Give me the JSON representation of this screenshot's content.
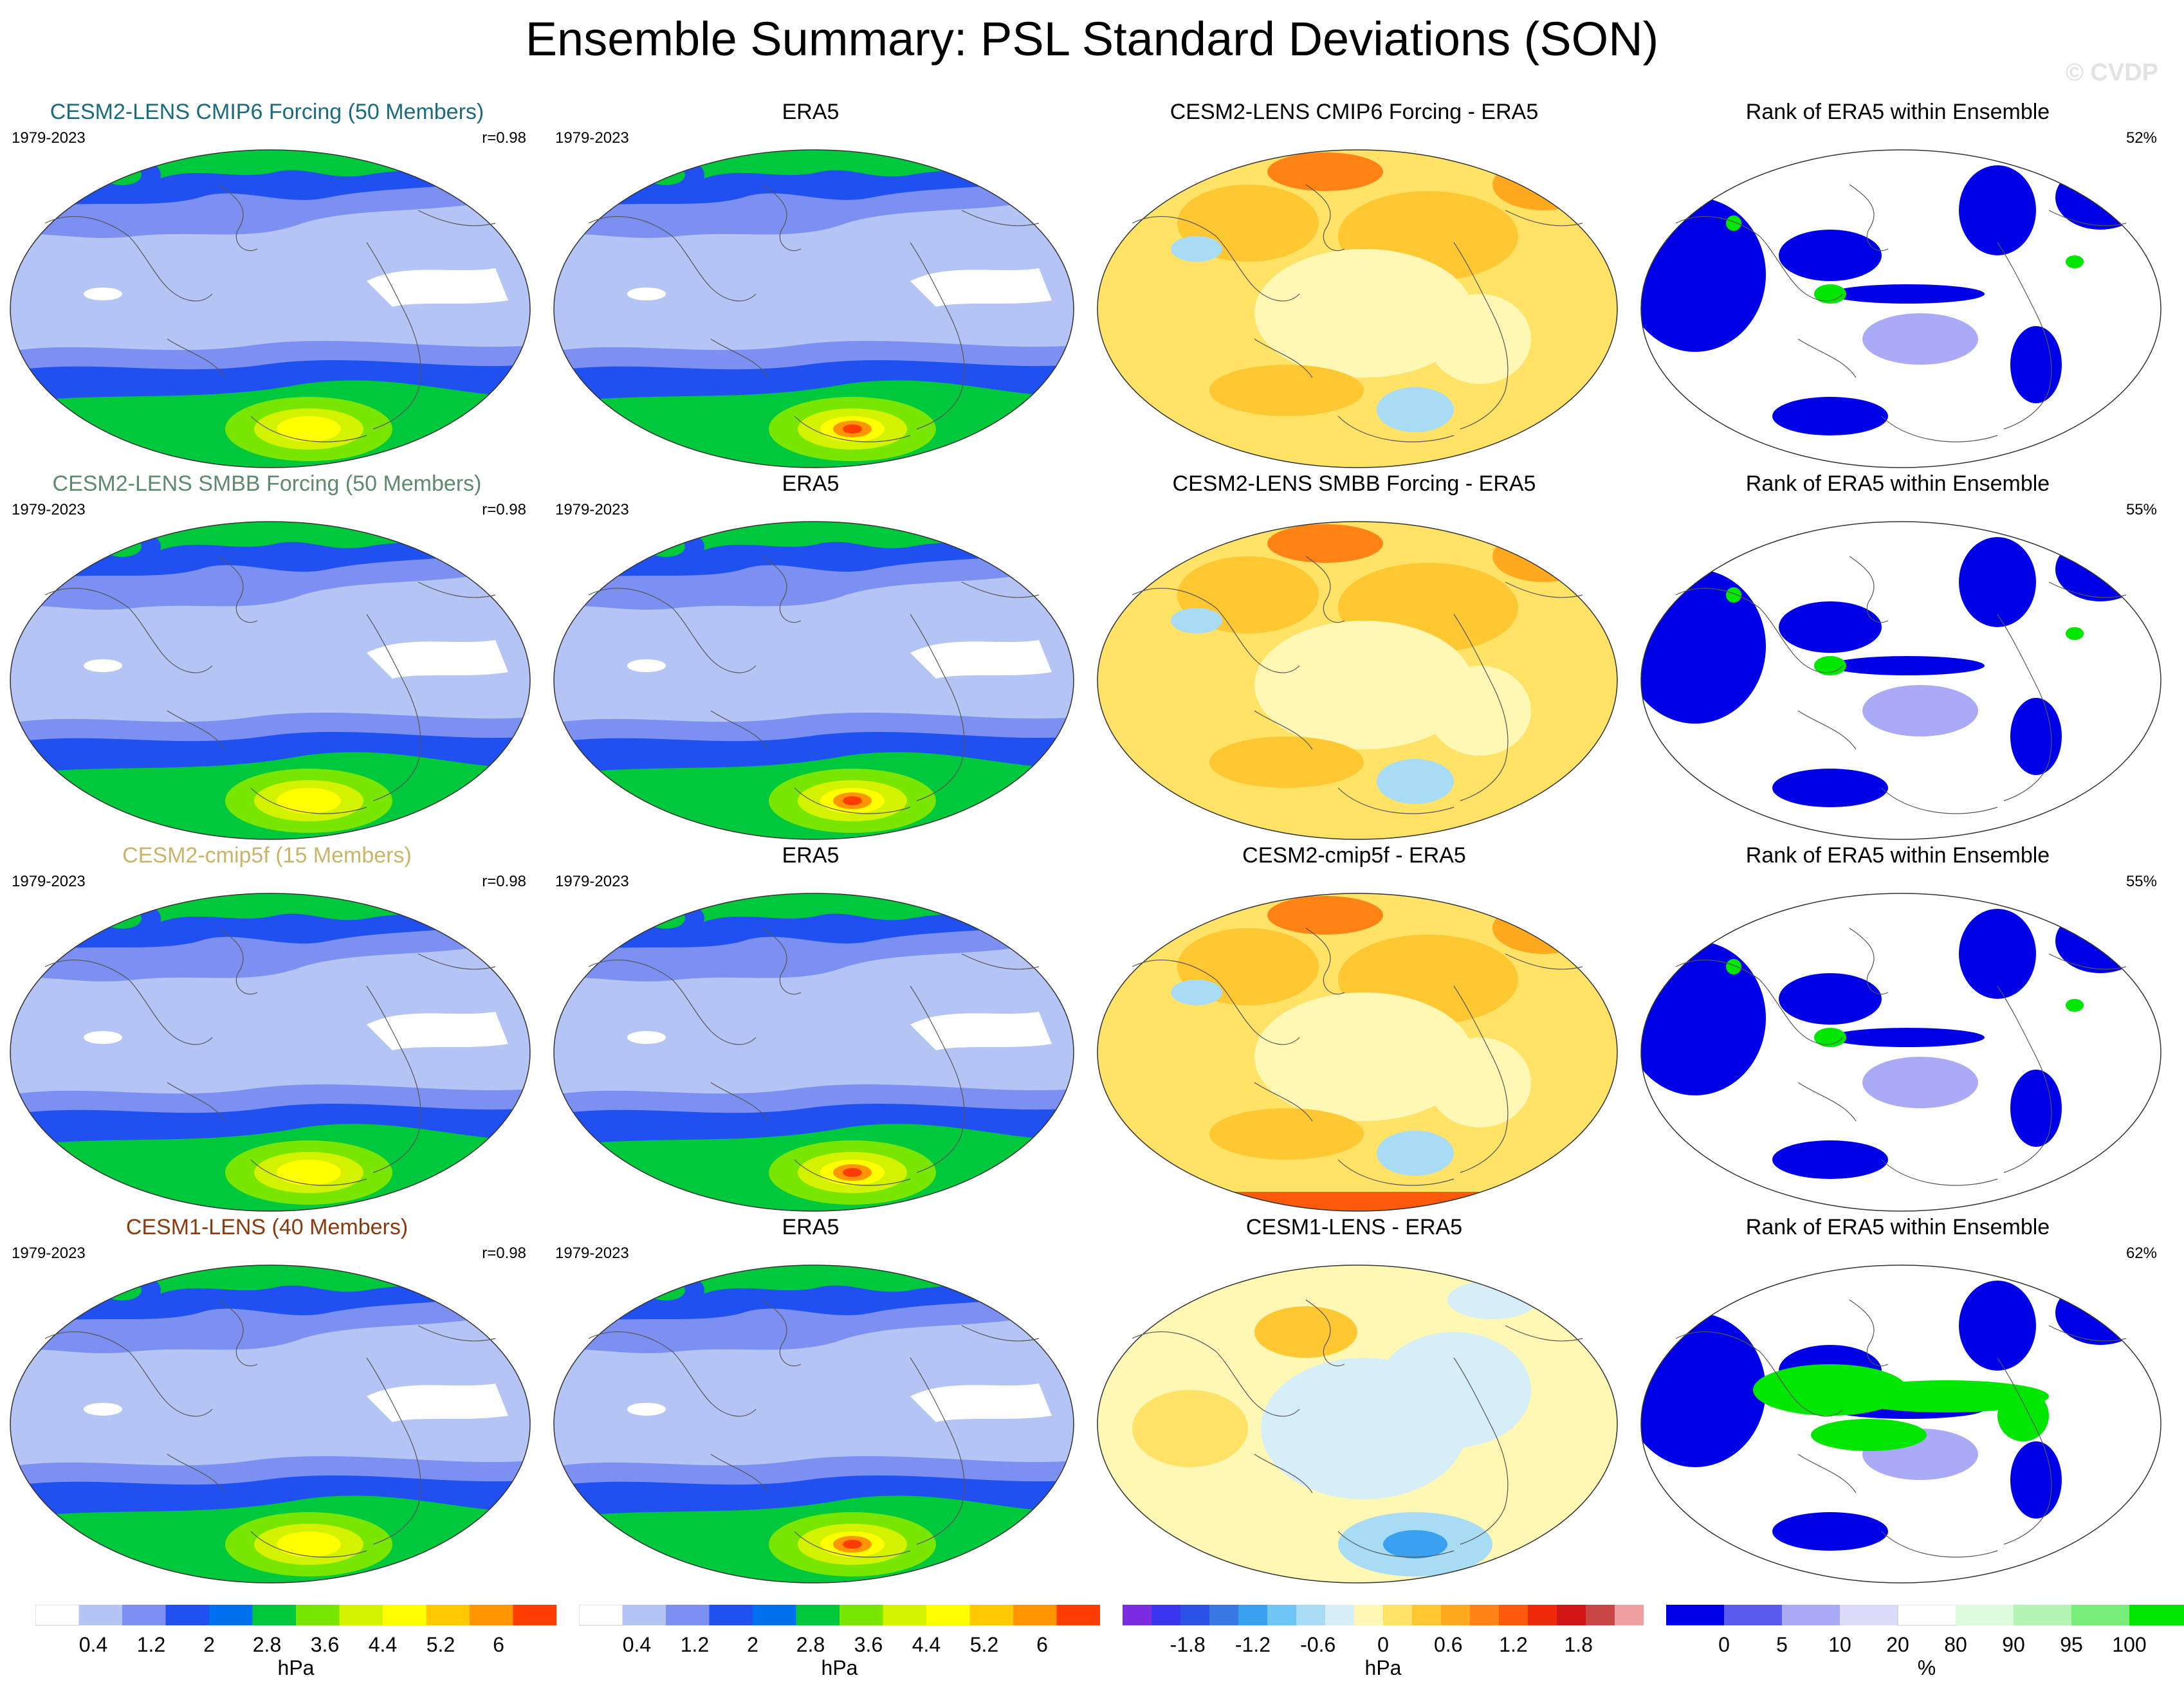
{
  "title": "Ensemble Summary: PSL Standard Deviations (SON)",
  "watermark": "© CVDP",
  "rows": [
    {
      "model": {
        "title": "CESM2-LENS CMIP6 Forcing (50 Members)",
        "title_color": "#1a6a80",
        "period": "1979-2023",
        "stat": "r=0.98"
      },
      "obs": {
        "title": "ERA5",
        "period": "1979-2023"
      },
      "diff": {
        "title": "CESM2-LENS CMIP6 Forcing - ERA5"
      },
      "rank": {
        "title": "Rank of ERA5 within Ensemble",
        "stat": "52%"
      }
    },
    {
      "model": {
        "title": "CESM2-LENS SMBB Forcing (50 Members)",
        "title_color": "#5f8a6e",
        "period": "1979-2023",
        "stat": "r=0.98"
      },
      "obs": {
        "title": "ERA5",
        "period": "1979-2023"
      },
      "diff": {
        "title": "CESM2-LENS SMBB Forcing - ERA5"
      },
      "rank": {
        "title": "Rank of ERA5 within Ensemble",
        "stat": "55%"
      }
    },
    {
      "model": {
        "title": "CESM2-cmip5f (15 Members)",
        "title_color": "#c9b56a",
        "period": "1979-2023",
        "stat": "r=0.98"
      },
      "obs": {
        "title": "ERA5",
        "period": "1979-2023"
      },
      "diff": {
        "title": "CESM2-cmip5f - ERA5"
      },
      "rank": {
        "title": "Rank of ERA5 within Ensemble",
        "stat": "55%"
      }
    },
    {
      "model": {
        "title": "CESM1-LENS (40 Members)",
        "title_color": "#8b3a0e",
        "period": "1979-2023",
        "stat": "r=0.98"
      },
      "obs": {
        "title": "ERA5",
        "period": "1979-2023"
      },
      "diff": {
        "title": "CESM1-LENS - ERA5"
      },
      "rank": {
        "title": "Rank of ERA5 within Ensemble",
        "stat": "62%"
      }
    }
  ],
  "colorbars": {
    "sd": {
      "unit": "hPa",
      "ticks": [
        "0.4",
        "1.2",
        "2",
        "2.8",
        "3.6",
        "4.4",
        "5.2",
        "6"
      ],
      "colors": [
        "#ffffff",
        "#b4c4f4",
        "#7b90f0",
        "#2050f0",
        "#0070f0",
        "#00c83c",
        "#78e600",
        "#d2f200",
        "#ffff00",
        "#ffc800",
        "#ff9600",
        "#ff3c00"
      ]
    },
    "diff": {
      "unit": "hPa",
      "ticks": [
        "-1.8",
        "-1.2",
        "-0.6",
        "0",
        "0.6",
        "1.2",
        "1.8"
      ],
      "colors": [
        "#7b2be0",
        "#3a36f0",
        "#2a52e6",
        "#3a78e6",
        "#3aa0f0",
        "#6ec6f4",
        "#a8dcf4",
        "#d6eef8",
        "#fff7b4",
        "#ffe266",
        "#ffc832",
        "#ffaa1e",
        "#ff8214",
        "#ff5a0a",
        "#f0280a",
        "#d21414",
        "#c84646",
        "#f0a0a0"
      ]
    },
    "rank": {
      "unit": "%",
      "ticks": [
        "0",
        "5",
        "10",
        "20",
        "80",
        "90",
        "95",
        "100"
      ],
      "colors": [
        "#0000e6",
        "#5a5aef",
        "#aaaaf6",
        "#dcdcfa",
        "#ffffff",
        "#dcfadc",
        "#b4f4b4",
        "#78ee78",
        "#00e600"
      ]
    }
  }
}
